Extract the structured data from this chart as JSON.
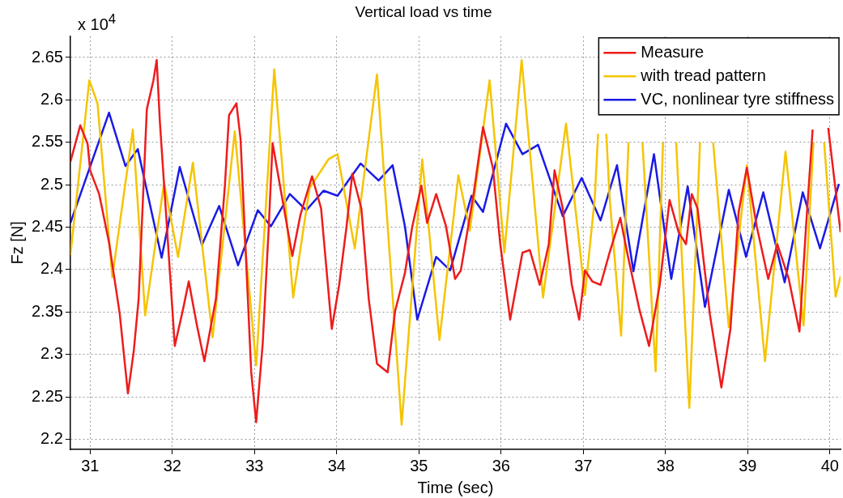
{
  "chart_data": {
    "type": "line",
    "title": "Vertical load vs time",
    "xlabel": "Time (sec)",
    "ylabel": "Fz [N]",
    "annotations": [
      "x 10$^{4}$"
    ],
    "xlim": [
      30.76,
      40.13
    ],
    "ylim": [
      2.188,
      2.675
    ],
    "xticks": [
      31,
      32,
      33,
      34,
      35,
      36,
      37,
      38,
      39,
      40
    ],
    "yticks": [
      2.2,
      2.25,
      2.3,
      2.35,
      2.4,
      2.45,
      2.5,
      2.55,
      2.6,
      2.65
    ],
    "grid": true,
    "legend": "top right",
    "marker": "none",
    "line_style": "solid",
    "series": [
      {
        "name": "Measure",
        "color": "#ee1c1c",
        "x": [
          30.76,
          30.88,
          30.97,
          31.0,
          31.11,
          31.23,
          31.36,
          31.46,
          31.53,
          31.59,
          31.69,
          31.77,
          31.81,
          31.85,
          31.91,
          32.03,
          32.13,
          32.2,
          32.3,
          32.39,
          32.53,
          32.64,
          32.69,
          32.78,
          32.83,
          32.96,
          33.02,
          33.1,
          33.17,
          33.22,
          33.31,
          33.46,
          33.56,
          33.7,
          33.81,
          33.94,
          34.03,
          34.12,
          34.19,
          34.3,
          34.39,
          34.49,
          34.62,
          34.71,
          34.83,
          34.92,
          35.03,
          35.1,
          35.21,
          35.33,
          35.44,
          35.51,
          35.6,
          35.67,
          35.78,
          35.9,
          35.99,
          36.11,
          36.26,
          36.35,
          36.47,
          36.58,
          36.65,
          36.75,
          36.86,
          36.95,
          37.02,
          37.11,
          37.21,
          37.32,
          37.45,
          37.54,
          37.68,
          37.8,
          37.93,
          38.05,
          38.16,
          38.25,
          38.32,
          38.39,
          38.54,
          38.68,
          38.79,
          38.89,
          38.99,
          39.11,
          39.25,
          39.36,
          39.5,
          39.63,
          39.71,
          39.79,
          39.84,
          39.98,
          40.07,
          40.13
        ],
        "values": [
          2.527,
          2.57,
          2.548,
          2.517,
          2.489,
          2.432,
          2.348,
          2.254,
          2.303,
          2.365,
          2.589,
          2.623,
          2.647,
          2.572,
          2.486,
          2.31,
          2.353,
          2.386,
          2.334,
          2.292,
          2.365,
          2.499,
          2.582,
          2.596,
          2.554,
          2.279,
          2.22,
          2.313,
          2.444,
          2.549,
          2.499,
          2.416,
          2.465,
          2.51,
          2.472,
          2.33,
          2.382,
          2.451,
          2.513,
          2.472,
          2.365,
          2.289,
          2.279,
          2.351,
          2.396,
          2.451,
          2.499,
          2.455,
          2.489,
          2.451,
          2.389,
          2.399,
          2.451,
          2.492,
          2.568,
          2.52,
          2.43,
          2.341,
          2.42,
          2.423,
          2.382,
          2.43,
          2.517,
          2.472,
          2.382,
          2.341,
          2.399,
          2.386,
          2.382,
          2.42,
          2.461,
          2.417,
          2.354,
          2.31,
          2.382,
          2.482,
          2.444,
          2.43,
          2.489,
          2.472,
          2.347,
          2.261,
          2.33,
          2.468,
          2.52,
          2.451,
          2.389,
          2.43,
          2.389,
          2.327,
          2.451,
          2.565,
          null,
          2.567,
          2.493,
          2.444
        ]
      },
      {
        "name": "with tread pattern",
        "color": "#f5c400",
        "x": [
          30.76,
          30.99,
          31.09,
          31.27,
          31.52,
          31.67,
          31.9,
          32.07,
          32.25,
          32.49,
          32.76,
          33.02,
          33.24,
          33.47,
          33.67,
          33.9,
          34.01,
          34.22,
          34.49,
          34.79,
          35.04,
          35.25,
          35.48,
          35.62,
          35.86,
          36.04,
          36.25,
          36.51,
          36.79,
          37.02,
          37.14,
          37.18,
          37.23,
          37.28,
          37.32,
          37.46,
          37.55,
          37.62,
          37.72,
          37.88,
          37.97,
          38.05,
          38.13,
          38.29,
          38.42,
          38.5,
          38.58,
          38.77,
          38.99,
          39.21,
          39.46,
          39.68,
          39.8,
          39.86,
          39.93,
          40.07,
          40.13
        ],
        "values": [
          2.417,
          2.623,
          2.596,
          2.391,
          2.565,
          2.346,
          2.502,
          2.415,
          2.526,
          2.32,
          2.563,
          2.287,
          2.636,
          2.367,
          2.496,
          2.53,
          2.536,
          2.425,
          2.63,
          2.217,
          2.53,
          2.317,
          2.511,
          2.446,
          2.623,
          2.42,
          2.647,
          2.367,
          2.572,
          2.37,
          2.485,
          2.56,
          null,
          2.56,
          2.485,
          2.322,
          2.55,
          null,
          2.55,
          2.28,
          2.55,
          null,
          2.55,
          2.237,
          2.55,
          null,
          2.55,
          2.332,
          2.523,
          2.292,
          2.539,
          2.334,
          2.55,
          null,
          2.55,
          2.368,
          2.392
        ]
      },
      {
        "name": "VC, nonlinear tyre stiffness",
        "color": "#1a1ae6",
        "x": [
          30.76,
          31.23,
          31.43,
          31.58,
          31.87,
          32.09,
          32.36,
          32.57,
          32.8,
          33.04,
          33.2,
          33.43,
          33.63,
          33.84,
          34.01,
          34.29,
          34.51,
          34.68,
          34.83,
          34.98,
          35.21,
          35.38,
          35.64,
          35.78,
          36.06,
          36.26,
          36.45,
          36.75,
          36.98,
          37.21,
          37.41,
          37.61,
          37.86,
          38.07,
          38.27,
          38.48,
          38.77,
          38.98,
          39.19,
          39.45,
          39.67,
          39.88,
          40.11
        ],
        "values": [
          2.455,
          2.585,
          2.522,
          2.542,
          2.414,
          2.521,
          2.429,
          2.475,
          2.405,
          2.47,
          2.451,
          2.489,
          2.47,
          2.493,
          2.487,
          2.525,
          2.505,
          2.523,
          2.451,
          2.341,
          2.415,
          2.399,
          2.487,
          2.468,
          2.572,
          2.536,
          2.547,
          2.463,
          2.508,
          2.458,
          2.523,
          2.398,
          2.536,
          2.389,
          2.498,
          2.356,
          2.494,
          2.415,
          2.491,
          2.385,
          2.491,
          2.425,
          2.501
        ]
      }
    ]
  }
}
